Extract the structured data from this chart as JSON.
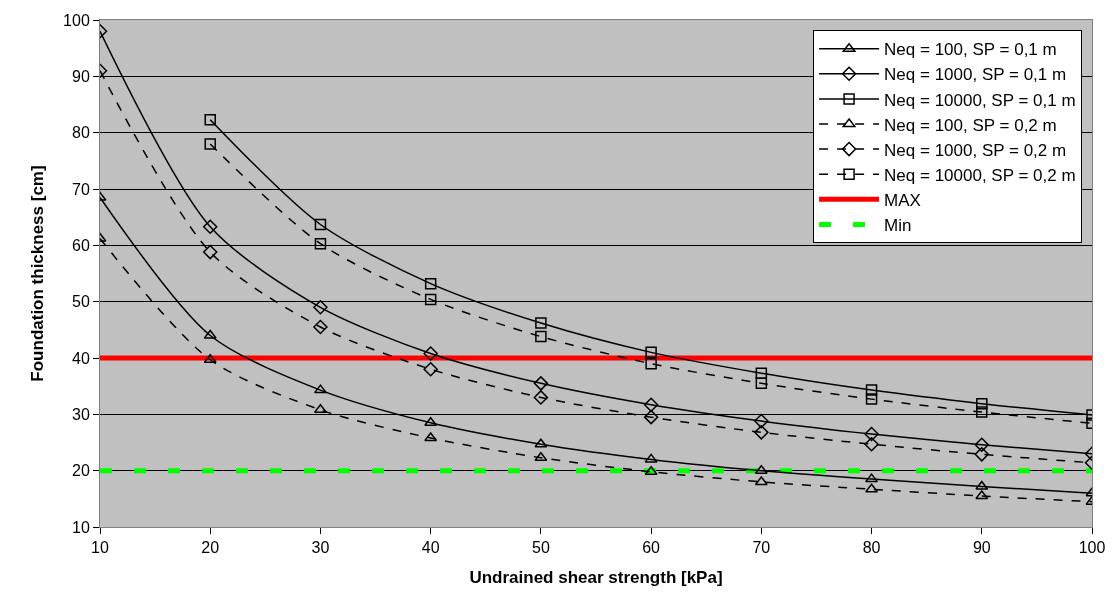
{
  "chart_data": {
    "type": "line",
    "xlabel": "Undrained shear strength [kPa]",
    "ylabel": "Foundation thickness [cm]",
    "x": [
      10,
      20,
      30,
      40,
      50,
      60,
      70,
      80,
      90,
      100
    ],
    "xlim": [
      10,
      100
    ],
    "xticks": [
      10,
      20,
      30,
      40,
      50,
      60,
      70,
      80,
      90,
      100
    ],
    "ylim": [
      10,
      100
    ],
    "yticks": [
      10,
      20,
      30,
      40,
      50,
      60,
      70,
      80,
      90,
      100
    ],
    "grid": "y",
    "legend": "top right",
    "series": [
      {
        "name": "Neq = 100, SP = 0,1 m",
        "color": "#000000",
        "marker": "triangle",
        "line_style": "solid",
        "values": [
          68.5,
          44,
          34.3,
          28.5,
          24.7,
          22,
          20,
          18.5,
          17.2,
          16
        ]
      },
      {
        "name": "Neq = 1000, SP = 0,1 m",
        "color": "#000000",
        "marker": "diamond",
        "line_style": "solid",
        "values": [
          98,
          63.3,
          49,
          40.8,
          35.5,
          31.7,
          28.8,
          26.5,
          24.6,
          23
        ]
      },
      {
        "name": "Neq = 10000, SP = 0,1 m",
        "color": "#000000",
        "marker": "square",
        "line_style": "solid",
        "values": [
          null,
          82.3,
          63.7,
          53.2,
          46.2,
          41,
          37.3,
          34.3,
          31.9,
          29.9
        ]
      },
      {
        "name": "Neq = 100, SP = 0,2 m",
        "color": "#000000",
        "marker": "triangle",
        "line_style": "dashed",
        "values": [
          61.2,
          39.7,
          30.8,
          25.8,
          22.3,
          19.8,
          18,
          16.7,
          15.5,
          14.5
        ]
      },
      {
        "name": "Neq = 1000, SP = 0,2 m",
        "color": "#000000",
        "marker": "diamond",
        "line_style": "dashed",
        "values": [
          91,
          58.8,
          45.5,
          38,
          33,
          29.5,
          26.8,
          24.7,
          22.9,
          21.4
        ]
      },
      {
        "name": "Neq = 10000, SP = 0,2 m",
        "color": "#000000",
        "marker": "square",
        "line_style": "dashed",
        "values": [
          null,
          78,
          60.3,
          50.4,
          43.8,
          39,
          35.5,
          32.7,
          30.4,
          28.4
        ]
      }
    ],
    "ref_lines": [
      {
        "axis": "y",
        "value": 40,
        "label": "MAX",
        "color": "#ff0000",
        "line_style": "solid"
      },
      {
        "axis": "y",
        "value": 20,
        "label": "Min",
        "color": "#00ff00",
        "line_style": "dashed"
      }
    ]
  }
}
